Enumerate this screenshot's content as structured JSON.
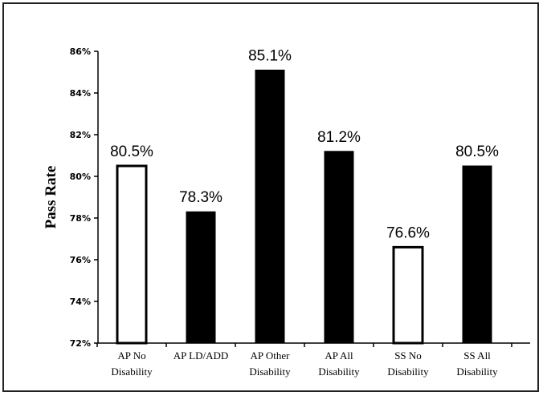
{
  "chart_data": {
    "type": "bar",
    "title": "",
    "xlabel": "",
    "ylabel": "Pass Rate",
    "ylim": [
      72,
      86
    ],
    "yticks": [
      "72%",
      "74%",
      "76%",
      "78%",
      "80%",
      "82%",
      "84%",
      "86%"
    ],
    "ytick_values": [
      72,
      74,
      76,
      78,
      80,
      82,
      84,
      86
    ],
    "categories": [
      [
        "AP No",
        "Disability"
      ],
      [
        "AP LD/ADD"
      ],
      [
        "AP Other",
        "Disability"
      ],
      [
        "AP All",
        "Disability"
      ],
      [
        "SS No",
        "Disability"
      ],
      [
        "SS All",
        "Disability"
      ]
    ],
    "values": [
      80.5,
      78.3,
      85.1,
      81.2,
      76.6,
      80.5
    ],
    "data_labels": [
      "80.5%",
      "78.3%",
      "85.1%",
      "81.2%",
      "76.6%",
      "80.5%"
    ],
    "bar_fill": [
      "hollow",
      "solid",
      "solid",
      "solid",
      "hollow",
      "solid"
    ],
    "grid": false,
    "legend": "none",
    "colors": {
      "solid": "#000000",
      "hollow": "#ffffff",
      "stroke": "#000000",
      "frame": "#222222"
    }
  }
}
